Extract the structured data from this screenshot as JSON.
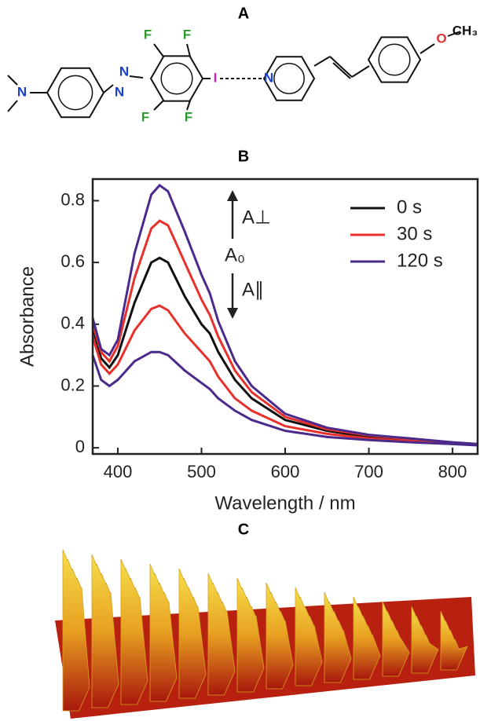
{
  "panel_labels": [
    "A",
    "B",
    "C"
  ],
  "molecule": {
    "atoms": [
      "N",
      "N",
      "N",
      "F",
      "F",
      "F",
      "F",
      "I",
      "N",
      "O",
      "CH₃"
    ]
  },
  "chart_data": {
    "type": "line",
    "x_label": "Wavelength / nm",
    "y_label": "Absorbance",
    "x": [
      370,
      380,
      390,
      400,
      420,
      440,
      450,
      460,
      480,
      500,
      510,
      520,
      540,
      560,
      600,
      650,
      700,
      750,
      800,
      830
    ],
    "series": [
      {
        "name": "0 s",
        "color": "#111111",
        "values": [
          0.39,
          0.29,
          0.26,
          0.3,
          0.47,
          0.6,
          0.615,
          0.6,
          0.49,
          0.4,
          0.37,
          0.31,
          0.22,
          0.16,
          0.09,
          0.055,
          0.035,
          0.025,
          0.015,
          0.01
        ]
      },
      {
        "name": "30 s",
        "color": "#e8312b",
        "values": [
          0.4,
          0.31,
          0.28,
          0.33,
          0.55,
          0.71,
          0.735,
          0.72,
          0.6,
          0.48,
          0.43,
          0.36,
          0.25,
          0.18,
          0.1,
          0.06,
          0.04,
          0.027,
          0.017,
          0.012
        ],
        "values_parallel": [
          0.36,
          0.27,
          0.24,
          0.27,
          0.38,
          0.45,
          0.46,
          0.445,
          0.37,
          0.31,
          0.28,
          0.23,
          0.16,
          0.12,
          0.07,
          0.045,
          0.03,
          0.02,
          0.013,
          0.009
        ]
      },
      {
        "name": "120 s",
        "color": "#4b2a8c",
        "values": [
          0.42,
          0.32,
          0.3,
          0.35,
          0.63,
          0.82,
          0.85,
          0.83,
          0.7,
          0.56,
          0.5,
          0.41,
          0.28,
          0.2,
          0.11,
          0.065,
          0.042,
          0.03,
          0.018,
          0.012
        ],
        "values_parallel": [
          0.3,
          0.22,
          0.2,
          0.22,
          0.28,
          0.31,
          0.31,
          0.3,
          0.25,
          0.21,
          0.19,
          0.16,
          0.12,
          0.09,
          0.055,
          0.035,
          0.025,
          0.018,
          0.012,
          0.008
        ]
      }
    ],
    "annotations": [
      "A⊥",
      "A₀",
      "A∥"
    ],
    "xlim": [
      370,
      830
    ],
    "xticks": [
      400,
      500,
      600,
      700,
      800
    ],
    "ylim": [
      -0.02,
      0.87
    ],
    "yticks": [
      0,
      {
        "value": 0.2,
        "label": "0.2"
      },
      {
        "value": 0.4,
        "label": "0.4"
      },
      {
        "value": 0.6,
        "label": "0.6"
      },
      {
        "value": 0.8,
        "label": "0.8"
      }
    ],
    "legend": "upper right"
  }
}
